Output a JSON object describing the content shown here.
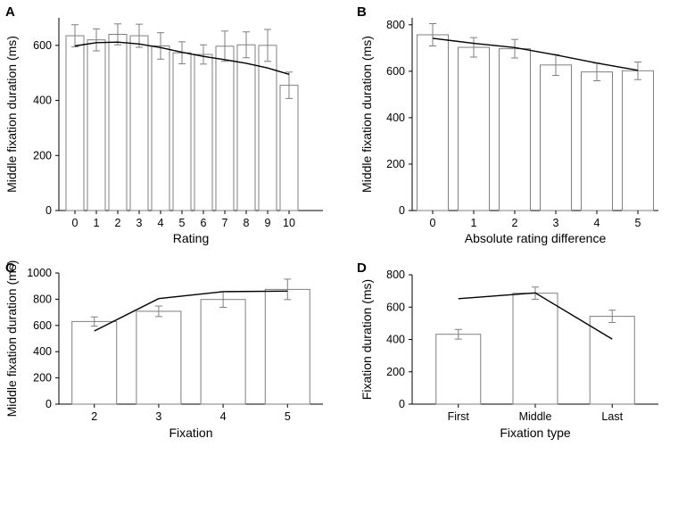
{
  "chart_data": [
    {
      "panel": "A",
      "type": "bar",
      "xlabel": "Rating",
      "ylabel": "Middle fixation duration (ms)",
      "categories": [
        "0",
        "1",
        "2",
        "3",
        "4",
        "5",
        "6",
        "7",
        "8",
        "9",
        "10"
      ],
      "values": [
        635,
        620,
        640,
        635,
        598,
        573,
        567,
        597,
        602,
        600,
        455
      ],
      "errors": [
        40,
        40,
        38,
        42,
        48,
        40,
        35,
        55,
        47,
        58,
        48
      ],
      "model_line": [
        598,
        610,
        612,
        605,
        592,
        575,
        560,
        548,
        535,
        518,
        495
      ],
      "ylim": [
        0,
        700
      ],
      "yticks": [
        0,
        200,
        400,
        600
      ]
    },
    {
      "panel": "B",
      "type": "bar",
      "xlabel": "Absolute rating difference",
      "ylabel": "Middle fixation duration (ms)",
      "categories": [
        "0",
        "1",
        "2",
        "3",
        "4",
        "5"
      ],
      "values": [
        757,
        703,
        697,
        627,
        597,
        602
      ],
      "errors": [
        48,
        42,
        40,
        45,
        38,
        38
      ],
      "model_line": [
        742,
        720,
        702,
        670,
        635,
        604
      ],
      "ylim": [
        0,
        830
      ],
      "yticks": [
        0,
        200,
        400,
        600,
        800
      ]
    },
    {
      "panel": "C",
      "type": "bar",
      "xlabel": "Fixation",
      "ylabel": "Middle fixation duration (ms)",
      "categories": [
        "2",
        "3",
        "4",
        "5"
      ],
      "values": [
        630,
        708,
        798,
        875
      ],
      "errors": [
        35,
        40,
        60,
        78
      ],
      "model_line": [
        558,
        805,
        858,
        862
      ],
      "ylim": [
        0,
        1000
      ],
      "yticks": [
        0,
        200,
        400,
        600,
        800,
        1000
      ]
    },
    {
      "panel": "D",
      "type": "bar",
      "xlabel": "Fixation type",
      "ylabel": "Fixation duration (ms)",
      "categories": [
        "First",
        "Middle",
        "Last"
      ],
      "values": [
        432,
        686,
        543
      ],
      "errors": [
        30,
        38,
        38
      ],
      "model_line": [
        652,
        688,
        402
      ],
      "ylim": [
        0,
        800
      ],
      "yticks": [
        0,
        200,
        400,
        600,
        800
      ]
    }
  ]
}
